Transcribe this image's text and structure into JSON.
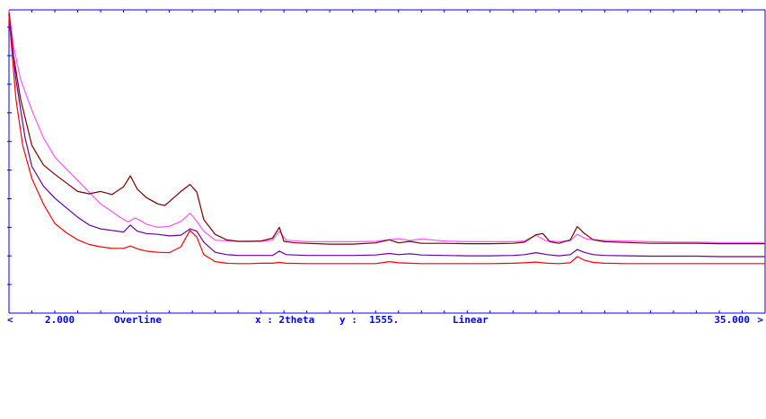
{
  "status_bar": {
    "scroll_left": "<",
    "start": "2.000",
    "mode": "Overline",
    "x_label": "x : 2theta",
    "y_label": "y :  1555.",
    "scale": "Linear",
    "end": "35.000",
    "scroll_right": ">"
  },
  "colors": {
    "axis": "#0000ff",
    "series": [
      "#ff55ff",
      "#7a0000",
      "#6a00a0",
      "#ff0000"
    ]
  },
  "chart_data": {
    "type": "line",
    "xlabel": "2theta",
    "ylabel": "",
    "xlim": [
      2.0,
      35.0
    ],
    "ylim": [
      0,
      1555
    ],
    "y_scale": "linear",
    "grid": false,
    "y_ticks": [
      1.4,
      3.5,
      5.5,
      7.6,
      9.7,
      11.7,
      13.8,
      15.9,
      17.9,
      20.0,
      22.1
    ],
    "series": [
      {
        "color": "#ff55ff",
        "points": [
          [
            2.0,
            1553
          ],
          [
            2.2,
            1370
          ],
          [
            2.5,
            1200
          ],
          [
            3.0,
            1040
          ],
          [
            3.5,
            900
          ],
          [
            4.0,
            800
          ],
          [
            4.5,
            740
          ],
          [
            5.0,
            680
          ],
          [
            5.5,
            620
          ],
          [
            6.0,
            560
          ],
          [
            6.5,
            520
          ],
          [
            7.0,
            480
          ],
          [
            7.2,
            468
          ],
          [
            7.5,
            488
          ],
          [
            7.8,
            470
          ],
          [
            8.0,
            456
          ],
          [
            8.5,
            440
          ],
          [
            9.0,
            445
          ],
          [
            9.5,
            470
          ],
          [
            9.9,
            512
          ],
          [
            10.2,
            470
          ],
          [
            10.5,
            420
          ],
          [
            11.0,
            374
          ],
          [
            12.0,
            368
          ],
          [
            13.0,
            368
          ],
          [
            13.5,
            374
          ],
          [
            13.8,
            420
          ],
          [
            14.1,
            374
          ],
          [
            15.0,
            366
          ],
          [
            16.0,
            366
          ],
          [
            17.0,
            366
          ],
          [
            18.0,
            368
          ],
          [
            18.7,
            378
          ],
          [
            19.0,
            382
          ],
          [
            19.5,
            372
          ],
          [
            20.0,
            380
          ],
          [
            21.0,
            370
          ],
          [
            22.0,
            366
          ],
          [
            23.0,
            366
          ],
          [
            24.0,
            366
          ],
          [
            24.5,
            370
          ],
          [
            25.0,
            400
          ],
          [
            25.4,
            372
          ],
          [
            26.0,
            366
          ],
          [
            26.5,
            372
          ],
          [
            26.8,
            404
          ],
          [
            27.2,
            380
          ],
          [
            28.0,
            372
          ],
          [
            29.0,
            370
          ],
          [
            30.0,
            366
          ],
          [
            31.0,
            364
          ],
          [
            32.0,
            364
          ],
          [
            33.0,
            362
          ],
          [
            34.0,
            362
          ],
          [
            35.0,
            362
          ]
        ]
      },
      {
        "color": "#7a0000",
        "points": [
          [
            2.0,
            1540
          ],
          [
            2.2,
            1320
          ],
          [
            2.5,
            1100
          ],
          [
            3.0,
            860
          ],
          [
            3.5,
            760
          ],
          [
            4.0,
            712
          ],
          [
            4.5,
            668
          ],
          [
            5.0,
            624
          ],
          [
            5.5,
            612
          ],
          [
            6.0,
            624
          ],
          [
            6.5,
            608
          ],
          [
            7.0,
            648
          ],
          [
            7.3,
            704
          ],
          [
            7.6,
            636
          ],
          [
            8.0,
            592
          ],
          [
            8.5,
            560
          ],
          [
            8.8,
            552
          ],
          [
            9.0,
            572
          ],
          [
            9.5,
            624
          ],
          [
            9.9,
            660
          ],
          [
            10.2,
            620
          ],
          [
            10.5,
            480
          ],
          [
            11.0,
            404
          ],
          [
            11.5,
            376
          ],
          [
            12.0,
            368
          ],
          [
            12.5,
            368
          ],
          [
            13.0,
            370
          ],
          [
            13.5,
            384
          ],
          [
            13.8,
            440
          ],
          [
            14.0,
            368
          ],
          [
            14.5,
            360
          ],
          [
            15.0,
            358
          ],
          [
            16.0,
            354
          ],
          [
            17.0,
            354
          ],
          [
            18.0,
            360
          ],
          [
            18.6,
            376
          ],
          [
            19.0,
            360
          ],
          [
            19.5,
            368
          ],
          [
            20.0,
            358
          ],
          [
            21.0,
            358
          ],
          [
            22.0,
            356
          ],
          [
            23.0,
            356
          ],
          [
            24.0,
            358
          ],
          [
            24.5,
            364
          ],
          [
            25.0,
            402
          ],
          [
            25.3,
            408
          ],
          [
            25.6,
            366
          ],
          [
            26.0,
            358
          ],
          [
            26.5,
            376
          ],
          [
            26.8,
            444
          ],
          [
            27.1,
            410
          ],
          [
            27.5,
            376
          ],
          [
            28.0,
            366
          ],
          [
            29.0,
            362
          ],
          [
            30.0,
            358
          ],
          [
            31.0,
            358
          ],
          [
            32.0,
            358
          ],
          [
            33.0,
            356
          ],
          [
            34.0,
            356
          ],
          [
            35.0,
            356
          ]
        ]
      },
      {
        "color": "#6a00a0",
        "points": [
          [
            2.0,
            1530
          ],
          [
            2.3,
            1200
          ],
          [
            2.7,
            900
          ],
          [
            3.0,
            752
          ],
          [
            3.5,
            652
          ],
          [
            4.0,
            590
          ],
          [
            4.5,
            540
          ],
          [
            5.0,
            492
          ],
          [
            5.5,
            452
          ],
          [
            6.0,
            432
          ],
          [
            6.5,
            424
          ],
          [
            7.0,
            416
          ],
          [
            7.3,
            452
          ],
          [
            7.6,
            420
          ],
          [
            8.0,
            408
          ],
          [
            8.5,
            404
          ],
          [
            9.0,
            396
          ],
          [
            9.5,
            400
          ],
          [
            9.9,
            432
          ],
          [
            10.2,
            420
          ],
          [
            10.5,
            364
          ],
          [
            11.0,
            312
          ],
          [
            11.5,
            300
          ],
          [
            12.0,
            296
          ],
          [
            12.5,
            296
          ],
          [
            13.0,
            296
          ],
          [
            13.5,
            296
          ],
          [
            13.8,
            318
          ],
          [
            14.1,
            300
          ],
          [
            15.0,
            296
          ],
          [
            16.0,
            296
          ],
          [
            17.0,
            296
          ],
          [
            18.0,
            298
          ],
          [
            18.6,
            306
          ],
          [
            19.0,
            300
          ],
          [
            19.5,
            304
          ],
          [
            20.0,
            298
          ],
          [
            21.0,
            296
          ],
          [
            22.0,
            294
          ],
          [
            23.0,
            294
          ],
          [
            24.0,
            296
          ],
          [
            24.5,
            300
          ],
          [
            25.0,
            310
          ],
          [
            25.5,
            300
          ],
          [
            26.0,
            294
          ],
          [
            26.5,
            300
          ],
          [
            26.8,
            326
          ],
          [
            27.1,
            312
          ],
          [
            27.5,
            300
          ],
          [
            28.0,
            296
          ],
          [
            29.0,
            294
          ],
          [
            30.0,
            292
          ],
          [
            31.0,
            292
          ],
          [
            32.0,
            292
          ],
          [
            33.0,
            290
          ],
          [
            34.0,
            290
          ],
          [
            35.0,
            290
          ]
        ]
      },
      {
        "color": "#ff0000",
        "points": [
          [
            2.0,
            1520
          ],
          [
            2.3,
            1100
          ],
          [
            2.6,
            860
          ],
          [
            3.0,
            690
          ],
          [
            3.5,
            560
          ],
          [
            4.0,
            460
          ],
          [
            4.5,
            412
          ],
          [
            5.0,
            376
          ],
          [
            5.5,
            352
          ],
          [
            6.0,
            340
          ],
          [
            6.5,
            332
          ],
          [
            7.0,
            332
          ],
          [
            7.3,
            344
          ],
          [
            7.6,
            330
          ],
          [
            8.0,
            318
          ],
          [
            8.5,
            312
          ],
          [
            9.0,
            310
          ],
          [
            9.5,
            340
          ],
          [
            9.9,
            424
          ],
          [
            10.2,
            390
          ],
          [
            10.5,
            300
          ],
          [
            11.0,
            264
          ],
          [
            11.5,
            256
          ],
          [
            12.0,
            254
          ],
          [
            12.5,
            254
          ],
          [
            13.0,
            256
          ],
          [
            13.5,
            256
          ],
          [
            13.8,
            260
          ],
          [
            14.1,
            256
          ],
          [
            15.0,
            254
          ],
          [
            16.0,
            254
          ],
          [
            17.0,
            254
          ],
          [
            18.0,
            254
          ],
          [
            18.6,
            264
          ],
          [
            19.0,
            258
          ],
          [
            19.5,
            256
          ],
          [
            20.0,
            254
          ],
          [
            21.0,
            254
          ],
          [
            22.0,
            254
          ],
          [
            23.0,
            254
          ],
          [
            24.0,
            256
          ],
          [
            24.5,
            258
          ],
          [
            25.0,
            262
          ],
          [
            25.5,
            256
          ],
          [
            26.0,
            254
          ],
          [
            26.5,
            258
          ],
          [
            26.8,
            290
          ],
          [
            27.1,
            272
          ],
          [
            27.5,
            260
          ],
          [
            28.0,
            256
          ],
          [
            29.0,
            254
          ],
          [
            30.0,
            254
          ],
          [
            31.0,
            254
          ],
          [
            32.0,
            254
          ],
          [
            33.0,
            254
          ],
          [
            34.0,
            254
          ],
          [
            35.0,
            254
          ]
        ]
      }
    ]
  }
}
